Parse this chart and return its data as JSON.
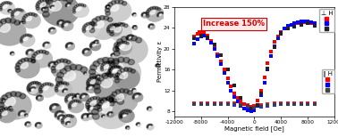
{
  "chart_xlim": [
    -12000,
    12000
  ],
  "chart_ylim": [
    7,
    28
  ],
  "xlabel": "Magnetic field [Oe]",
  "ylabel": "Permittivity ε",
  "yticks": [
    8,
    12,
    16,
    20,
    24,
    28
  ],
  "xticks": [
    -12000,
    -8000,
    -4000,
    0,
    4000,
    8000,
    12000
  ],
  "annotation_text": "Increase 150%",
  "annotation_color": "#cc0000",
  "perp_red_x": [
    -9000,
    -8500,
    -8200,
    -8000,
    -7500,
    -7000,
    -6500,
    -6000,
    -5500,
    -5000,
    -4500,
    -4000,
    -3500,
    -3000,
    -2500,
    -2000,
    -1500,
    -1000,
    -500,
    0,
    500,
    1000,
    1500,
    2000,
    2500,
    3000,
    3500,
    4000,
    4500,
    5000,
    5500,
    6000,
    6500,
    7000,
    7500,
    8000,
    8500,
    9000
  ],
  "perp_red_y": [
    22.3,
    22.8,
    23.2,
    23.2,
    23.0,
    22.5,
    21.5,
    20.3,
    19.0,
    17.5,
    16.0,
    14.3,
    12.8,
    11.5,
    10.5,
    9.8,
    9.3,
    9.0,
    8.8,
    9.0,
    10.0,
    12.0,
    14.5,
    17.2,
    19.5,
    21.3,
    22.3,
    23.2,
    23.8,
    24.2,
    24.5,
    24.5,
    24.8,
    24.8,
    25.0,
    25.0,
    24.8,
    24.5
  ],
  "perp_blue_x": [
    -9000,
    -8500,
    -8000,
    -7500,
    -7000,
    -6500,
    -6000,
    -5500,
    -5000,
    -4500,
    -4000,
    -3500,
    -3000,
    -2500,
    -2000,
    -1500,
    -1000,
    -500,
    0,
    500,
    1000,
    1500,
    2000,
    2500,
    3000,
    3500,
    4000,
    4500,
    5000,
    5500,
    6000,
    6500,
    7000,
    7500,
    8000,
    8500,
    9000
  ],
  "perp_blue_y": [
    21.0,
    21.8,
    22.3,
    22.5,
    22.0,
    21.2,
    20.0,
    18.5,
    17.0,
    15.3,
    13.5,
    12.0,
    10.8,
    9.8,
    9.0,
    8.5,
    8.2,
    8.0,
    8.2,
    9.0,
    11.0,
    13.5,
    16.0,
    18.5,
    20.5,
    22.0,
    23.0,
    23.8,
    24.3,
    24.5,
    24.8,
    25.0,
    25.2,
    25.3,
    25.2,
    25.0,
    24.8
  ],
  "perp_black_x": [
    -9000,
    -8000,
    -7000,
    -6000,
    -5000,
    -4000,
    -3000,
    -2000,
    -1000,
    -500,
    0,
    500,
    1000,
    2000,
    3000,
    4000,
    5000,
    6000,
    7000,
    8000,
    9000
  ],
  "perp_black_y": [
    22.0,
    22.5,
    22.2,
    20.8,
    18.8,
    16.0,
    13.0,
    10.5,
    9.0,
    8.5,
    8.3,
    9.2,
    11.5,
    16.2,
    20.2,
    22.8,
    23.8,
    24.2,
    24.5,
    24.8,
    24.3
  ],
  "par_red_x": [
    -9000,
    -8000,
    -7000,
    -6000,
    -5000,
    -4000,
    -3000,
    -2000,
    -1000,
    0,
    1000,
    2000,
    3000,
    4000,
    5000,
    6000,
    7000,
    8000,
    9000
  ],
  "par_red_y": [
    9.5,
    9.5,
    9.5,
    9.5,
    9.5,
    9.5,
    9.5,
    9.4,
    9.2,
    8.8,
    9.2,
    9.4,
    9.5,
    9.5,
    9.5,
    9.5,
    9.5,
    9.5,
    9.5
  ],
  "par_blue_x": [
    -9000,
    -8000,
    -7000,
    -6000,
    -5000,
    -4000,
    -3000,
    -2000,
    -1000,
    0,
    1000,
    2000,
    3000,
    4000,
    5000,
    6000,
    7000,
    8000,
    9000
  ],
  "par_blue_y": [
    9.3,
    9.3,
    9.3,
    9.3,
    9.3,
    9.3,
    9.2,
    9.0,
    8.8,
    8.4,
    8.8,
    9.0,
    9.2,
    9.3,
    9.3,
    9.3,
    9.3,
    9.3,
    9.3
  ],
  "par_black_x": [
    -9000,
    -8000,
    -7000,
    -6000,
    -5000,
    -4000,
    -3000,
    -2000,
    -1000,
    0,
    1000,
    2000,
    3000,
    4000,
    5000,
    6000,
    7000,
    8000,
    9000
  ],
  "par_black_y": [
    9.4,
    9.4,
    9.4,
    9.4,
    9.4,
    9.4,
    9.3,
    9.2,
    9.0,
    8.7,
    9.0,
    9.2,
    9.3,
    9.4,
    9.4,
    9.4,
    9.4,
    9.4,
    9.4
  ]
}
